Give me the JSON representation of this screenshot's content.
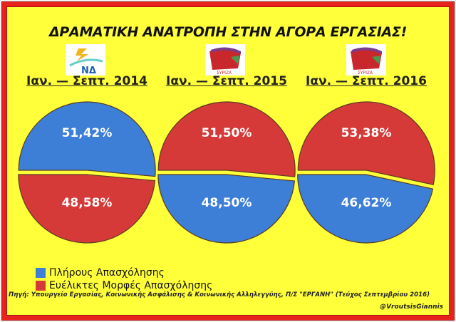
{
  "chart_data": {
    "type": "pie",
    "title": "ΔΡΑΜΑΤΙΚΗ ΑΝΑΤΡΟΠΗ ΣΤΗΝ ΑΓΟΡΑ ΕΡΓΑΣΙΑΣ!",
    "legend": [
      {
        "name": "Πλήρους Απασχόλησης",
        "color": "#3d7ed6"
      },
      {
        "name": "Ευέλικτες Μορφές Απασχόλησης",
        "color": "#d63a38"
      }
    ],
    "legend_position": "bottom-left",
    "pies": [
      {
        "title": "Ιαν. — Σεπτ. 2014",
        "logo": "ΝΔ",
        "slices": [
          {
            "series": "Πλήρους Απασχόλησης",
            "value": 51.42,
            "label": "51,42%",
            "position": "top"
          },
          {
            "series": "Ευέλικτες Μορφές Απασχόλησης",
            "value": 48.58,
            "label": "48,58%",
            "position": "bottom"
          }
        ]
      },
      {
        "title": "Ιαν. — Σεπτ. 2015",
        "logo": "ΣΥΡΙΖΑ",
        "slices": [
          {
            "series": "Ευέλικτες Μορφές Απασχόλησης",
            "value": 51.5,
            "label": "51,50%",
            "position": "top"
          },
          {
            "series": "Πλήρους Απασχόλησης",
            "value": 48.5,
            "label": "48,50%",
            "position": "bottom"
          }
        ]
      },
      {
        "title": "Ιαν. — Σεπτ. 2016",
        "logo": "ΣΥΡΙΖΑ",
        "slices": [
          {
            "series": "Ευέλικτες Μορφές Απασχόλησης",
            "value": 53.38,
            "label": "53,38%",
            "position": "top"
          },
          {
            "series": "Πλήρους Απασχόλησης",
            "value": 46.62,
            "label": "46,62%",
            "position": "bottom"
          }
        ]
      }
    ]
  },
  "source": "Πηγή: Υπουργείο Εργασίας, Κοινωνικής Ασφάλισης & Κοινωνικής Αλληλεγγύης, Π/Σ \"ΕΡΓΑΝΗ\" (Τεύχος Σεπτεμβρίου 2016)",
  "handle": "@VroutsisGiannis",
  "colors": {
    "background": "#ffff3a",
    "frame": "#e8231d"
  }
}
